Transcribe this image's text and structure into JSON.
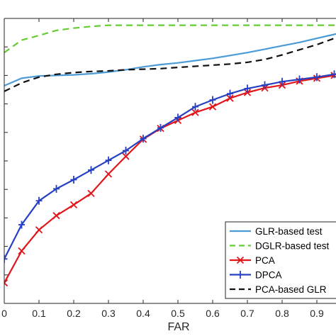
{
  "chart_data": {
    "type": "line",
    "title": "",
    "xlabel": "FAR",
    "ylabel": "",
    "xlim": [
      0,
      1
    ],
    "ylim": [
      0.5,
      1
    ],
    "x_ticks": [
      0,
      0.1,
      0.2,
      0.3,
      0.4,
      0.5,
      0.6,
      0.7,
      0.8,
      0.9
    ],
    "x_tick_labels": [
      "0",
      "0.1",
      "0.2",
      "0.3",
      "0.4",
      "0.5",
      "0.6",
      "0.7",
      "0.8",
      "0.9"
    ],
    "grid": false,
    "legend_position": "bottom-right",
    "series": [
      {
        "name": "GLR-based test",
        "color": "#4a9bd6",
        "style": "solid",
        "marker": "none",
        "x": [
          0,
          0.05,
          0.1,
          0.15,
          0.2,
          0.25,
          0.3,
          0.35,
          0.4,
          0.45,
          0.5,
          0.55,
          0.6,
          0.65,
          0.7,
          0.75,
          0.8,
          0.85,
          0.9,
          0.95,
          1.0
        ],
        "y": [
          0.882,
          0.895,
          0.899,
          0.9,
          0.901,
          0.903,
          0.906,
          0.91,
          0.915,
          0.919,
          0.922,
          0.926,
          0.93,
          0.935,
          0.94,
          0.946,
          0.952,
          0.958,
          0.965,
          0.972,
          0.98
        ]
      },
      {
        "name": "DGLR-based test",
        "color": "#66cc33",
        "style": "dashed",
        "marker": "none",
        "x": [
          0,
          0.05,
          0.1,
          0.15,
          0.2,
          0.25,
          0.3,
          0.4,
          0.5,
          0.6,
          0.7,
          0.8,
          0.9,
          1.0
        ],
        "y": [
          0.94,
          0.962,
          0.97,
          0.979,
          0.983,
          0.986,
          0.988,
          0.988,
          0.988,
          0.988,
          0.988,
          0.988,
          0.988,
          0.988
        ]
      },
      {
        "name": "PCA",
        "color": "#e0161b",
        "style": "solid",
        "marker": "x",
        "x": [
          0,
          0.05,
          0.1,
          0.15,
          0.2,
          0.25,
          0.3,
          0.35,
          0.4,
          0.45,
          0.5,
          0.55,
          0.6,
          0.65,
          0.7,
          0.75,
          0.8,
          0.85,
          0.9,
          0.95
        ],
        "y": [
          0.536,
          0.592,
          0.629,
          0.654,
          0.673,
          0.693,
          0.727,
          0.758,
          0.788,
          0.807,
          0.821,
          0.835,
          0.845,
          0.86,
          0.87,
          0.878,
          0.883,
          0.89,
          0.895,
          0.9
        ]
      },
      {
        "name": "DPCA",
        "color": "#2640c4",
        "style": "solid",
        "marker": "+",
        "x": [
          0,
          0.05,
          0.1,
          0.15,
          0.2,
          0.25,
          0.3,
          0.35,
          0.4,
          0.45,
          0.5,
          0.55,
          0.6,
          0.65,
          0.7,
          0.75,
          0.8,
          0.85,
          0.9,
          0.95
        ],
        "y": [
          0.578,
          0.638,
          0.68,
          0.701,
          0.717,
          0.734,
          0.751,
          0.768,
          0.789,
          0.808,
          0.826,
          0.845,
          0.857,
          0.868,
          0.877,
          0.883,
          0.889,
          0.893,
          0.897,
          0.902
        ]
      },
      {
        "name": "PCA-based GLR",
        "color": "#111111",
        "style": "dashed",
        "marker": "none",
        "x": [
          0,
          0.05,
          0.1,
          0.15,
          0.2,
          0.25,
          0.3,
          0.35,
          0.4,
          0.45,
          0.5,
          0.55,
          0.6,
          0.65,
          0.7,
          0.75,
          0.8,
          0.85,
          0.9,
          0.95,
          1.0
        ],
        "y": [
          0.872,
          0.887,
          0.897,
          0.902,
          0.905,
          0.907,
          0.908,
          0.91,
          0.911,
          0.912,
          0.914,
          0.916,
          0.918,
          0.92,
          0.923,
          0.928,
          0.936,
          0.945,
          0.954,
          0.965,
          0.975
        ]
      }
    ]
  }
}
